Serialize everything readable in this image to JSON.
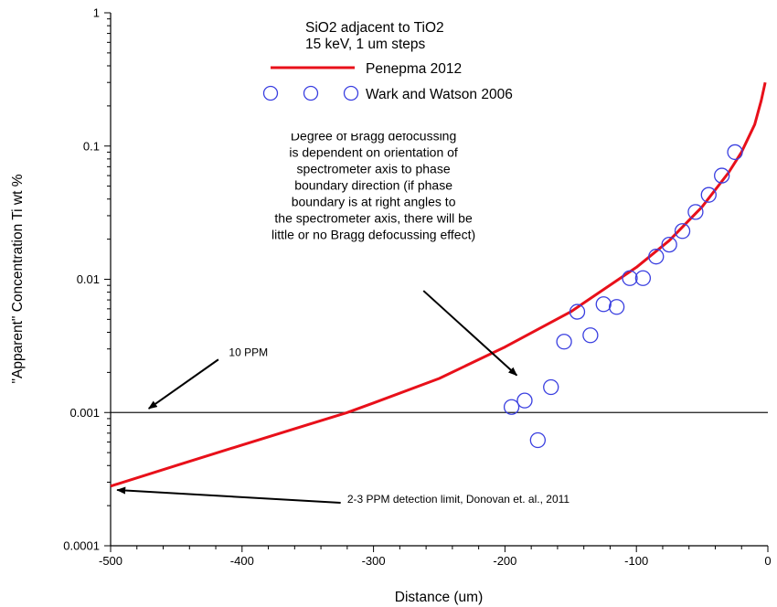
{
  "chart_data": {
    "type": "scatter",
    "title": "",
    "xlabel": "Distance (um)",
    "ylabel": "\"Apparent\" Concentration Ti wt %",
    "xlim": [
      -500,
      0
    ],
    "ylim": [
      0.0001,
      1
    ],
    "yscale": "log",
    "x_ticks": [
      -500,
      -400,
      -300,
      -200,
      -100,
      0
    ],
    "x_tick_labels": [
      "-500",
      "-400",
      "-300",
      "-200",
      "-100",
      "0"
    ],
    "y_ticks": [
      0.0001,
      0.001,
      0.01,
      0.1,
      1
    ],
    "y_tick_labels": [
      "0.0001",
      "0.001",
      "0.01",
      "0.1",
      "1"
    ],
    "grid": false,
    "legend": {
      "position": "top-center",
      "title_lines": [
        "SiO2 adjacent to TiO2",
        "15 keV, 1 um steps"
      ]
    },
    "series": [
      {
        "name": "Penepma 2012",
        "kind": "line",
        "color": "#e8101a",
        "x": [
          -500,
          -450,
          -400,
          -350,
          -320,
          -300,
          -250,
          -200,
          -150,
          -100,
          -75,
          -50,
          -30,
          -20,
          -10,
          -5,
          -2
        ],
        "y": [
          0.00028,
          0.0004,
          0.00057,
          0.00081,
          0.001,
          0.00118,
          0.0018,
          0.0031,
          0.0057,
          0.0123,
          0.0195,
          0.035,
          0.063,
          0.09,
          0.145,
          0.22,
          0.3
        ]
      },
      {
        "name": "Wark and Watson 2006",
        "kind": "scatter",
        "color": "#3a3fe0",
        "x": [
          -195,
          -185,
          -175,
          -165,
          -155,
          -145,
          -135,
          -125,
          -115,
          -105,
          -95,
          -85,
          -75,
          -65,
          -55,
          -45,
          -35,
          -25
        ],
        "y": [
          0.0011,
          0.00123,
          0.00062,
          0.00155,
          0.0034,
          0.0057,
          0.0038,
          0.0065,
          0.0062,
          0.0102,
          0.0102,
          0.0148,
          0.0182,
          0.023,
          0.032,
          0.043,
          0.06,
          0.09
        ]
      }
    ],
    "reference_line": {
      "y": 0.001,
      "color": "#1a1a1a"
    },
    "annotations": [
      {
        "text_lines": [
          "Degree of Bragg defocussing",
          "is dependent on orientation of",
          "spectrometer axis to phase",
          "boundary direction (if phase",
          "boundary is at right angles to",
          "the spectrometer axis, there will be",
          "little or no Bragg defocussing effect)"
        ],
        "text_x": -300,
        "text_y": 0.11,
        "arrow_from": [
          -262,
          0.0082
        ],
        "arrow_to": [
          -191,
          0.0019
        ]
      },
      {
        "text_lines": [
          "10 PPM"
        ],
        "text_x": -410,
        "text_y": 0.00265,
        "arrow_from": [
          -418,
          0.0025
        ],
        "arrow_to": [
          -471,
          0.00107
        ]
      },
      {
        "text_lines": [
          "2-3 PPM detection limit, Donovan et. al., 2011"
        ],
        "text_x": -320,
        "text_y": 0.00021,
        "arrow_from": [
          -325,
          0.00021
        ],
        "arrow_to": [
          -495,
          0.000262
        ]
      }
    ]
  }
}
